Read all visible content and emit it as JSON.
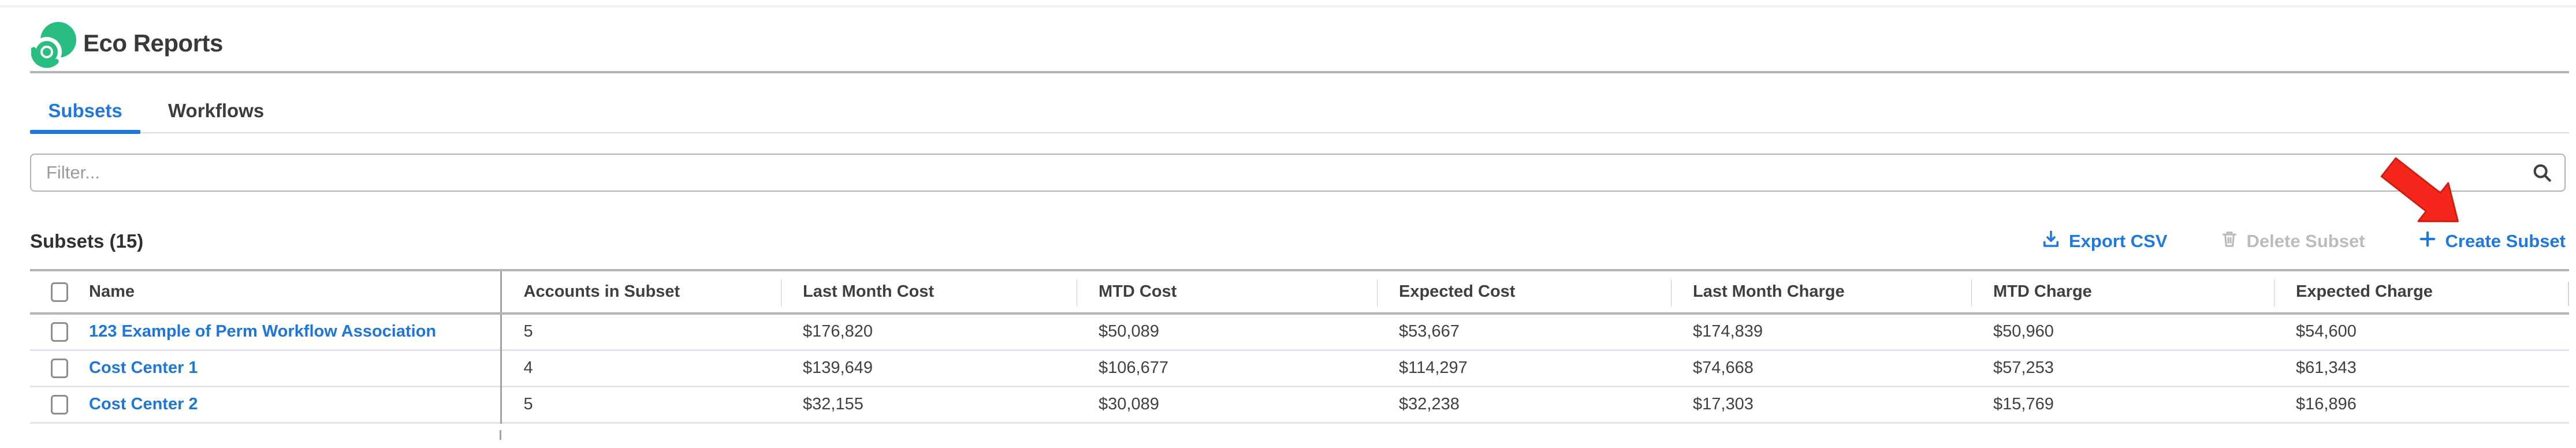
{
  "header": {
    "app_title": "Eco Reports",
    "logo_icon": "eco-green-swirl-logo"
  },
  "tabs": [
    {
      "label": "Subsets",
      "active": true
    },
    {
      "label": "Workflows",
      "active": false
    }
  ],
  "filter": {
    "placeholder": "Filter...",
    "icon": "search-icon"
  },
  "toolbar": {
    "heading": "Subsets (15)",
    "export_label": "Export CSV",
    "export_icon": "download-icon",
    "delete_label": "Delete Subset",
    "delete_icon": "trash-icon",
    "delete_disabled": true,
    "create_label": "Create Subset",
    "create_icon": "plus-icon"
  },
  "annotation": {
    "type": "red-arrow",
    "points_to": "Create Subset"
  },
  "table": {
    "columns": [
      "Name",
      "Accounts in Subset",
      "Last Month Cost",
      "MTD Cost",
      "Expected Cost",
      "Last Month Charge",
      "MTD Charge",
      "Expected Charge"
    ],
    "rows": [
      [
        "123 Example of Perm Workflow Association",
        "5",
        "$176,820",
        "$50,089",
        "$53,667",
        "$174,839",
        "$50,960",
        "$54,600"
      ],
      [
        "Cost Center 1",
        "4",
        "$139,649",
        "$106,677",
        "$114,297",
        "$74,668",
        "$57,253",
        "$61,343"
      ],
      [
        "Cost Center 2",
        "5",
        "$32,155",
        "$30,089",
        "$32,238",
        "$17,303",
        "$15,769",
        "$16,896"
      ]
    ]
  },
  "colors": {
    "accent_blue": "#1f78e2",
    "brand_green": "#2abd81",
    "disabled_gray": "#bcbcbc",
    "arrow_red": "#f5261b"
  }
}
